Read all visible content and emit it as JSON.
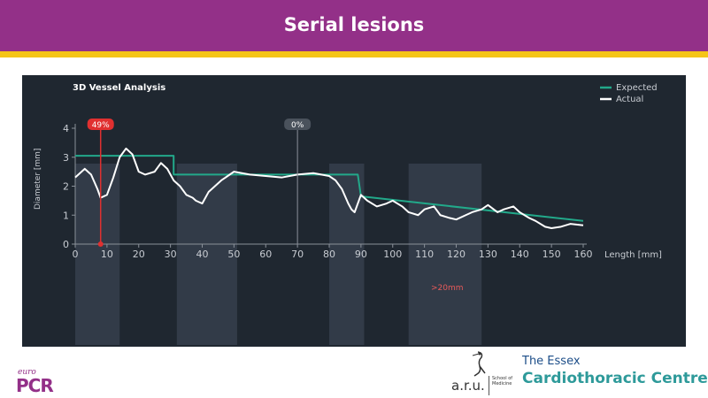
{
  "slide": {
    "title": "Serial lesions"
  },
  "panel": {
    "title": "3D Vessel Analysis",
    "legend": {
      "expected": "Expected",
      "actual": "Actual"
    },
    "markers": {
      "stenosis": "49%",
      "reference": "0%"
    },
    "annotation": ">20mm",
    "xlabel": "Length [mm]",
    "ylabel": "Diameter [mm]"
  },
  "colors": {
    "header": "#933088",
    "stripe": "#f5c518",
    "panel": "#1f2730",
    "expected": "#22a98a",
    "actual": "#ffffff",
    "marker": "#e03030",
    "band": "#3a4350"
  },
  "logos": {
    "europcr_top": "euro",
    "europcr_main": "PCR",
    "aru": "a.r.u.",
    "aru_school": "School of Medicine",
    "essex_line1": "The Essex",
    "essex_line2": "Cardiothoracic Centre"
  },
  "chart_data": {
    "type": "line",
    "title": "3D Vessel Analysis",
    "xlabel": "Length [mm]",
    "ylabel": "Diameter [mm]",
    "xlim": [
      0,
      160
    ],
    "ylim": [
      0,
      4.3
    ],
    "x_ticks": [
      0,
      10,
      20,
      30,
      40,
      50,
      60,
      70,
      80,
      90,
      100,
      110,
      120,
      130,
      140,
      150,
      160
    ],
    "y_ticks": [
      0,
      1,
      2,
      3,
      4
    ],
    "legend_position": "top-right",
    "grid": false,
    "markers": [
      {
        "label": "49%",
        "x": 8
      },
      {
        "label": "0%",
        "x": 70
      }
    ],
    "shaded_bands": [
      {
        "x_start": 0,
        "x_end": 14
      },
      {
        "x_start": 32,
        "x_end": 51
      },
      {
        "x_start": 80,
        "x_end": 91
      },
      {
        "x_start": 105,
        "x_end": 128
      }
    ],
    "annotation": {
      "text": ">20mm",
      "x": 115
    },
    "series": [
      {
        "name": "Expected",
        "x": [
          0,
          31,
          31,
          89,
          90,
          160
        ],
        "y": [
          3.05,
          3.05,
          2.4,
          2.4,
          1.65,
          0.8
        ]
      },
      {
        "name": "Actual",
        "x": [
          0,
          3,
          5,
          7,
          8,
          10,
          12,
          14,
          16,
          18,
          20,
          22,
          25,
          27,
          29,
          31,
          33,
          35,
          37,
          38,
          40,
          42,
          44,
          46,
          50,
          55,
          60,
          65,
          70,
          75,
          80,
          82,
          84,
          86,
          87,
          88,
          90,
          92,
          95,
          98,
          100,
          103,
          105,
          108,
          110,
          113,
          115,
          118,
          120,
          123,
          125,
          128,
          130,
          133,
          135,
          138,
          140,
          143,
          145,
          148,
          150,
          153,
          156,
          160
        ],
        "y": [
          2.3,
          2.6,
          2.4,
          1.9,
          1.6,
          1.7,
          2.3,
          3.0,
          3.3,
          3.1,
          2.5,
          2.4,
          2.5,
          2.8,
          2.6,
          2.2,
          2.0,
          1.7,
          1.6,
          1.5,
          1.4,
          1.8,
          2.0,
          2.2,
          2.5,
          2.4,
          2.35,
          2.3,
          2.4,
          2.45,
          2.35,
          2.2,
          1.9,
          1.4,
          1.2,
          1.1,
          1.7,
          1.5,
          1.3,
          1.4,
          1.5,
          1.3,
          1.1,
          1.0,
          1.2,
          1.3,
          1.0,
          0.9,
          0.85,
          1.0,
          1.1,
          1.2,
          1.35,
          1.1,
          1.2,
          1.3,
          1.1,
          0.9,
          0.8,
          0.6,
          0.55,
          0.6,
          0.7,
          0.65
        ]
      }
    ]
  }
}
